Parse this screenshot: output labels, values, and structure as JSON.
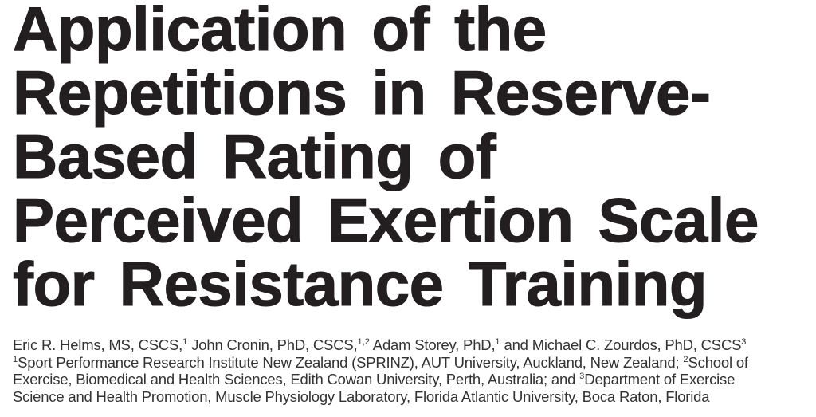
{
  "article": {
    "title_lines": [
      "Application of the",
      "Repetitions in Reserve-",
      "Based Rating of",
      "Perceived Exertion Scale",
      "for Resistance Training"
    ],
    "byline_segments": [
      {
        "text": "Eric R. Helms, MS, CSCS,",
        "sup": "1"
      },
      {
        "text": " John Cronin, PhD, CSCS,",
        "sup": "1,2"
      },
      {
        "text": " Adam Storey, PhD,",
        "sup": "1"
      },
      {
        "text": " and Michael C. Zourdos, PhD, CSCS",
        "sup": "3"
      }
    ],
    "affiliation_lines": [
      {
        "lead_sup": "1",
        "text": "Sport Performance Research Institute New Zealand (SPRINZ), AUT University, Auckland, New Zealand; ",
        "mid_sup": "2",
        "text_after": "School of"
      },
      {
        "text": "Exercise, Biomedical and Health Sciences, Edith Cowan University, Perth, Australia; and ",
        "mid_sup": "3",
        "text_after": "Department of Exercise"
      },
      {
        "text": "Science and Health Promotion, Muscle Physiology Laboratory, Florida Atlantic University, Boca Raton, Florida"
      }
    ],
    "colors": {
      "title_text": "#231f20",
      "body_text": "#333333",
      "background": "#ffffff"
    }
  }
}
